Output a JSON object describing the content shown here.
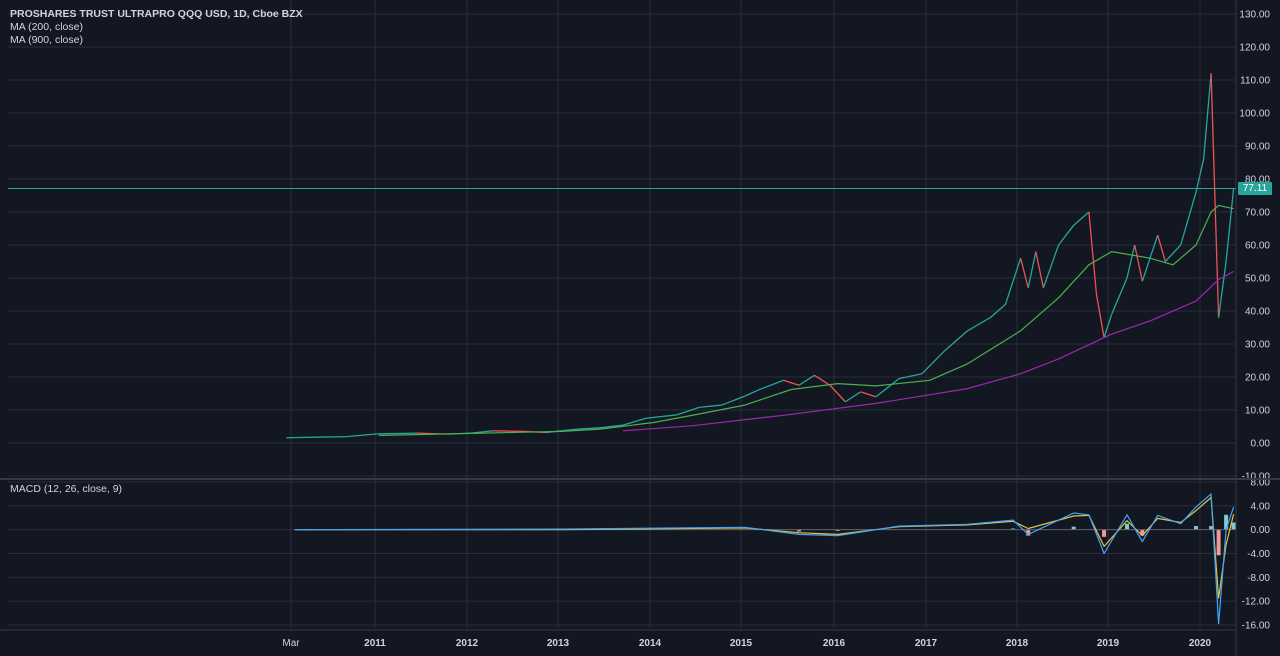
{
  "legend": {
    "title": "PROSHARES TRUST ULTRAPRO QQQ USD, 1D, Cboe BZX",
    "ma1": "MA (200, close)",
    "ma2": "MA (900, close)",
    "macd": "MACD (12, 26, close, 9)"
  },
  "last_price_label": "77.11",
  "colors": {
    "background": "#131722",
    "grid": "#2a2e39",
    "up": "#26a69a",
    "down": "#ef5350",
    "ma200": "#4caf50",
    "ma900": "#9c27b0",
    "macd_line": "#42a5f5",
    "signal_line": "#e2c24a",
    "last_price": "#26a69a"
  },
  "chart_data": [
    {
      "type": "line",
      "pane": "price",
      "y_ticks": [
        "130.00",
        "120.00",
        "110.00",
        "100.00",
        "90.00",
        "80.00",
        "70.00",
        "60.00",
        "50.00",
        "40.00",
        "30.00",
        "20.00",
        "10.00",
        "0.00",
        "-10.00"
      ],
      "ylim": [
        -10,
        130
      ],
      "x_ticks": [
        "Mar",
        "2011",
        "2012",
        "2013",
        "2014",
        "2015",
        "2016",
        "2017",
        "2018",
        "2019",
        "2020"
      ],
      "last_price": 77.11,
      "series": [
        {
          "name": "PROSHARES TRUST ULTRAPRO QQQ USD",
          "points": [
            [
              "2010-02",
              1.6
            ],
            [
              "2010-06",
              1.8
            ],
            [
              "2010-09",
              1.9
            ],
            [
              "2011-01",
              2.8
            ],
            [
              "2011-06",
              3.0
            ],
            [
              "2011-10",
              2.7
            ],
            [
              "2012-01",
              3.0
            ],
            [
              "2012-04",
              3.7
            ],
            [
              "2012-08",
              3.5
            ],
            [
              "2012-11",
              3.2
            ],
            [
              "2013-03",
              4.2
            ],
            [
              "2013-06",
              4.6
            ],
            [
              "2013-09",
              5.4
            ],
            [
              "2013-12",
              7.5
            ],
            [
              "2014-04",
              8.5
            ],
            [
              "2014-07",
              10.8
            ],
            [
              "2014-10",
              11.5
            ],
            [
              "2015-01",
              14.2
            ],
            [
              "2015-03",
              16.3
            ],
            [
              "2015-06",
              19.0
            ],
            [
              "2015-08",
              17.5
            ],
            [
              "2015-10",
              20.5
            ],
            [
              "2015-12",
              17.5
            ],
            [
              "2016-02",
              12.5
            ],
            [
              "2016-04",
              15.5
            ],
            [
              "2016-06",
              14.0
            ],
            [
              "2016-09",
              19.5
            ],
            [
              "2016-12",
              21.0
            ],
            [
              "2017-03",
              28.0
            ],
            [
              "2017-06",
              34.0
            ],
            [
              "2017-09",
              38.0
            ],
            [
              "2017-11",
              42.0
            ],
            [
              "2018-01",
              56.0
            ],
            [
              "2018-02",
              47.0
            ],
            [
              "2018-03",
              58.0
            ],
            [
              "2018-04",
              47.0
            ],
            [
              "2018-06",
              60.0
            ],
            [
              "2018-08",
              66.0
            ],
            [
              "2018-10",
              70.0
            ],
            [
              "2018-11",
              45.0
            ],
            [
              "2018-12",
              32.0
            ],
            [
              "2019-01",
              39.0
            ],
            [
              "2019-03",
              50.0
            ],
            [
              "2019-04",
              60.0
            ],
            [
              "2019-05",
              49.0
            ],
            [
              "2019-07",
              63.0
            ],
            [
              "2019-08",
              55.0
            ],
            [
              "2019-10",
              60.0
            ],
            [
              "2019-12",
              76.0
            ],
            [
              "2020-01",
              86.0
            ],
            [
              "2020-02",
              112.0
            ],
            [
              "2020-03",
              38.0
            ],
            [
              "2020-04",
              55.0
            ],
            [
              "2020-05",
              77.11
            ]
          ]
        },
        {
          "name": "MA (200, close)",
          "points": [
            [
              "2011-01",
              2.3
            ],
            [
              "2012-01",
              2.9
            ],
            [
              "2013-01",
              3.5
            ],
            [
              "2013-06",
              4.2
            ],
            [
              "2014-01",
              6.2
            ],
            [
              "2014-07",
              8.8
            ],
            [
              "2015-01",
              11.5
            ],
            [
              "2015-07",
              16.2
            ],
            [
              "2016-01",
              18.0
            ],
            [
              "2016-06",
              17.3
            ],
            [
              "2017-01",
              19.0
            ],
            [
              "2017-06",
              24.0
            ],
            [
              "2018-01",
              34.0
            ],
            [
              "2018-06",
              44.0
            ],
            [
              "2018-10",
              54.0
            ],
            [
              "2019-01",
              58.0
            ],
            [
              "2019-06",
              56.0
            ],
            [
              "2019-09",
              54.0
            ],
            [
              "2019-12",
              60.0
            ],
            [
              "2020-02",
              70.0
            ],
            [
              "2020-03",
              72.0
            ],
            [
              "2020-05",
              71.0
            ]
          ]
        },
        {
          "name": "MA (900, close)",
          "points": [
            [
              "2013-09",
              3.7
            ],
            [
              "2014-06",
              5.2
            ],
            [
              "2015-06",
              8.4
            ],
            [
              "2016-06",
              12.0
            ],
            [
              "2017-06",
              16.5
            ],
            [
              "2018-01",
              21.0
            ],
            [
              "2018-06",
              25.5
            ],
            [
              "2019-01",
              33.0
            ],
            [
              "2019-06",
              37.0
            ],
            [
              "2019-12",
              43.0
            ],
            [
              "2020-03",
              49.5
            ],
            [
              "2020-05",
              52.0
            ]
          ]
        }
      ]
    },
    {
      "type": "line",
      "pane": "macd",
      "y_ticks": [
        "8.00",
        "4.00",
        "0.00",
        "-4.00",
        "-8.00",
        "-12.00",
        "-16.00"
      ],
      "ylim": [
        -16.5,
        8
      ],
      "series": [
        {
          "name": "MACD",
          "points": [
            [
              "2010-03",
              0.0
            ],
            [
              "2013-01",
              0.1
            ],
            [
              "2015-01",
              0.4
            ],
            [
              "2015-08",
              -0.8
            ],
            [
              "2016-01",
              -1.0
            ],
            [
              "2016-09",
              0.6
            ],
            [
              "2017-06",
              0.9
            ],
            [
              "2017-12",
              1.6
            ],
            [
              "2018-02",
              -0.8
            ],
            [
              "2018-08",
              2.8
            ],
            [
              "2018-10",
              2.5
            ],
            [
              "2018-12",
              -4.0
            ],
            [
              "2019-03",
              2.5
            ],
            [
              "2019-05",
              -2.0
            ],
            [
              "2019-07",
              2.4
            ],
            [
              "2019-10",
              1.0
            ],
            [
              "2019-12",
              3.8
            ],
            [
              "2020-02",
              6.0
            ],
            [
              "2020-03",
              -15.8
            ],
            [
              "2020-04",
              0.0
            ],
            [
              "2020-05",
              3.8
            ]
          ]
        },
        {
          "name": "Signal",
          "points": [
            [
              "2010-03",
              0.0
            ],
            [
              "2013-01",
              0.0
            ],
            [
              "2015-01",
              0.3
            ],
            [
              "2015-08",
              -0.5
            ],
            [
              "2016-01",
              -0.8
            ],
            [
              "2016-09",
              0.5
            ],
            [
              "2017-06",
              0.8
            ],
            [
              "2017-12",
              1.4
            ],
            [
              "2018-02",
              0.2
            ],
            [
              "2018-08",
              2.3
            ],
            [
              "2018-10",
              2.4
            ],
            [
              "2018-12",
              -2.8
            ],
            [
              "2019-03",
              1.5
            ],
            [
              "2019-05",
              -1.0
            ],
            [
              "2019-07",
              1.9
            ],
            [
              "2019-10",
              1.2
            ],
            [
              "2019-12",
              3.2
            ],
            [
              "2020-02",
              5.4
            ],
            [
              "2020-03",
              -11.5
            ],
            [
              "2020-04",
              -2.5
            ],
            [
              "2020-05",
              2.6
            ]
          ]
        },
        {
          "name": "Histogram",
          "points": [
            [
              "2015-08",
              -0.3
            ],
            [
              "2016-01",
              -0.2
            ],
            [
              "2017-12",
              0.2
            ],
            [
              "2018-02",
              -1.0
            ],
            [
              "2018-08",
              0.5
            ],
            [
              "2018-12",
              -1.2
            ],
            [
              "2019-03",
              1.0
            ],
            [
              "2019-05",
              -1.0
            ],
            [
              "2019-12",
              0.6
            ],
            [
              "2020-02",
              0.6
            ],
            [
              "2020-03",
              -4.3
            ],
            [
              "2020-04",
              2.5
            ],
            [
              "2020-05",
              1.2
            ]
          ]
        }
      ]
    }
  ]
}
